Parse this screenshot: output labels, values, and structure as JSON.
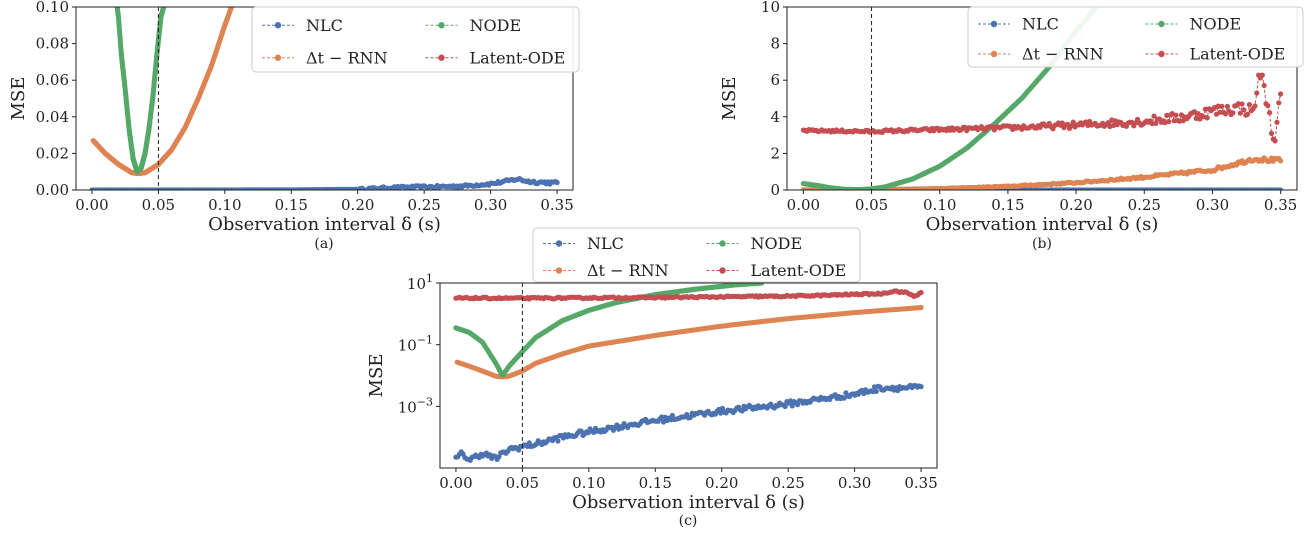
{
  "colors": {
    "NLC": "#4c72b0",
    "dt_RNN": "#dd8452",
    "NODE": "#55a868",
    "Latent_ODE": "#c44e52",
    "vline": "#222222",
    "axis": "#222222"
  },
  "chart_data": [
    {
      "id": "a",
      "type": "line",
      "caption": "(a)",
      "xlabel": "Observation interval δ (s)",
      "ylabel": "MSE",
      "xlim": [
        -0.012,
        0.362
      ],
      "ylim": [
        0,
        0.1
      ],
      "yscale": "linear",
      "xticks": [
        0.0,
        0.05,
        0.1,
        0.15,
        0.2,
        0.25,
        0.3,
        0.35
      ],
      "xtick_labels": [
        "0.00",
        "0.05",
        "0.10",
        "0.15",
        "0.20",
        "0.25",
        "0.30",
        "0.35"
      ],
      "yticks": [
        0,
        0.02,
        0.04,
        0.06,
        0.08,
        0.1
      ],
      "ytick_labels": [
        "0.00",
        "0.02",
        "0.04",
        "0.06",
        "0.08",
        "0.10"
      ],
      "vline": 0.05,
      "grid": false,
      "legend": {
        "placement": "top-right",
        "columns": 2,
        "order": [
          "NLC",
          "NODE",
          "Δt − RNN",
          "Latent-ODE"
        ]
      },
      "series": [
        {
          "name": "NLC",
          "color_key": "NLC",
          "x": [
            0.0,
            0.05,
            0.1,
            0.15,
            0.2,
            0.22,
            0.24,
            0.26,
            0.28,
            0.3,
            0.31,
            0.32,
            0.33,
            0.34,
            0.35
          ],
          "y": [
            0.0,
            0.0,
            0.0,
            0.0001,
            0.0004,
            0.0012,
            0.0016,
            0.0018,
            0.0022,
            0.0034,
            0.0045,
            0.006,
            0.0045,
            0.0042,
            0.0038
          ]
        },
        {
          "name": "Δt − RNN",
          "color_key": "dt_RNN",
          "x": [
            0.001,
            0.01,
            0.02,
            0.03,
            0.035,
            0.04,
            0.05,
            0.06,
            0.07,
            0.08,
            0.09,
            0.1,
            0.105
          ],
          "y": [
            0.027,
            0.02,
            0.014,
            0.0095,
            0.009,
            0.0095,
            0.014,
            0.022,
            0.034,
            0.05,
            0.068,
            0.09,
            0.1
          ]
        },
        {
          "name": "NODE",
          "color_key": "NODE",
          "x": [
            0.019,
            0.02,
            0.022,
            0.025,
            0.028,
            0.031,
            0.034,
            0.037,
            0.04,
            0.043,
            0.046,
            0.049,
            0.052,
            0.054
          ],
          "y": [
            0.1,
            0.094,
            0.075,
            0.055,
            0.033,
            0.017,
            0.01,
            0.012,
            0.02,
            0.034,
            0.052,
            0.075,
            0.095,
            0.1
          ]
        }
      ]
    },
    {
      "id": "b",
      "type": "line",
      "caption": "(b)",
      "xlabel": "Observation interval δ (s)",
      "ylabel": "MSE",
      "xlim": [
        -0.012,
        0.362
      ],
      "ylim": [
        0,
        10
      ],
      "yscale": "linear",
      "xticks": [
        0.0,
        0.05,
        0.1,
        0.15,
        0.2,
        0.25,
        0.3,
        0.35
      ],
      "xtick_labels": [
        "0.00",
        "0.05",
        "0.10",
        "0.15",
        "0.20",
        "0.25",
        "0.30",
        "0.35"
      ],
      "yticks": [
        0,
        2,
        4,
        6,
        8,
        10
      ],
      "ytick_labels": [
        "0",
        "2",
        "4",
        "6",
        "8",
        "10"
      ],
      "vline": 0.05,
      "grid": false,
      "legend": {
        "placement": "top-right",
        "columns": 2,
        "order": [
          "NLC",
          "NODE",
          "Δt − RNN",
          "Latent-ODE"
        ]
      },
      "series": [
        {
          "name": "NLC",
          "color_key": "NLC",
          "x": [
            0.0,
            0.1,
            0.2,
            0.3,
            0.35
          ],
          "y": [
            0.0,
            0.0,
            0.0,
            0.0,
            0.0
          ]
        },
        {
          "name": "Δt − RNN",
          "color_key": "dt_RNN",
          "x": [
            0.0,
            0.05,
            0.1,
            0.15,
            0.2,
            0.25,
            0.3,
            0.33,
            0.35
          ],
          "y": [
            0.01,
            0.02,
            0.08,
            0.2,
            0.4,
            0.7,
            1.1,
            1.7,
            1.6
          ]
        },
        {
          "name": "NODE",
          "color_key": "NODE",
          "x": [
            0.0,
            0.01,
            0.02,
            0.03,
            0.04,
            0.05,
            0.06,
            0.08,
            0.1,
            0.12,
            0.14,
            0.16,
            0.18,
            0.2,
            0.215
          ],
          "y": [
            0.35,
            0.25,
            0.12,
            0.04,
            0.02,
            0.06,
            0.17,
            0.6,
            1.3,
            2.3,
            3.6,
            5.0,
            6.7,
            8.7,
            10
          ]
        },
        {
          "name": "Latent-ODE",
          "color_key": "Latent_ODE",
          "x": [
            0.0,
            0.05,
            0.1,
            0.15,
            0.2,
            0.25,
            0.28,
            0.3,
            0.32,
            0.33,
            0.335,
            0.34,
            0.345,
            0.35
          ],
          "y": [
            3.25,
            3.2,
            3.3,
            3.4,
            3.55,
            3.75,
            4.0,
            4.3,
            4.5,
            4.3,
            6.5,
            4.8,
            2.6,
            5.1
          ]
        }
      ]
    },
    {
      "id": "c",
      "type": "line",
      "caption": "(c)",
      "xlabel": "Observation interval δ (s)",
      "ylabel": "MSE",
      "xlim": [
        -0.012,
        0.362
      ],
      "ylim": [
        1e-05,
        10
      ],
      "yscale": "log",
      "xticks": [
        0.0,
        0.05,
        0.1,
        0.15,
        0.2,
        0.25,
        0.3,
        0.35
      ],
      "xtick_labels": [
        "0.00",
        "0.05",
        "0.10",
        "0.15",
        "0.20",
        "0.25",
        "0.30",
        "0.35"
      ],
      "yticks": [
        10,
        0.1,
        0.001
      ],
      "ytick_labels": [
        {
          "base": "10",
          "exp": "1"
        },
        {
          "base": "10",
          "exp": "−1"
        },
        {
          "base": "10",
          "exp": "−3"
        }
      ],
      "vline": 0.05,
      "grid": false,
      "legend": {
        "placement": "top-center",
        "columns": 2,
        "order": [
          "NLC",
          "NODE",
          "Δt − RNN",
          "Latent-ODE"
        ]
      },
      "series": [
        {
          "name": "NLC",
          "color_key": "NLC",
          "x": [
            0.0,
            0.005,
            0.01,
            0.02,
            0.03,
            0.04,
            0.05,
            0.06,
            0.08,
            0.1,
            0.15,
            0.2,
            0.25,
            0.3,
            0.32,
            0.35
          ],
          "y": [
            2e-05,
            3e-05,
            1.8e-05,
            3e-05,
            2e-05,
            4e-05,
            5e-05,
            6e-05,
            0.0001,
            0.00015,
            0.00035,
            0.0007,
            0.0012,
            0.0025,
            0.004,
            0.004
          ]
        },
        {
          "name": "Δt − RNN",
          "color_key": "dt_RNN",
          "x": [
            0.001,
            0.01,
            0.02,
            0.03,
            0.035,
            0.04,
            0.05,
            0.06,
            0.08,
            0.1,
            0.15,
            0.2,
            0.25,
            0.3,
            0.35
          ],
          "y": [
            0.027,
            0.02,
            0.014,
            0.0095,
            0.009,
            0.0095,
            0.014,
            0.025,
            0.05,
            0.09,
            0.2,
            0.4,
            0.7,
            1.1,
            1.6
          ]
        },
        {
          "name": "NODE",
          "color_key": "NODE",
          "x": [
            0.0,
            0.01,
            0.02,
            0.03,
            0.035,
            0.04,
            0.05,
            0.06,
            0.08,
            0.1,
            0.12,
            0.15,
            0.18,
            0.21,
            0.23
          ],
          "y": [
            0.35,
            0.25,
            0.12,
            0.025,
            0.01,
            0.02,
            0.06,
            0.17,
            0.6,
            1.3,
            2.3,
            4.2,
            6.3,
            8.7,
            10
          ]
        },
        {
          "name": "Latent-ODE",
          "color_key": "Latent_ODE",
          "x": [
            0.0,
            0.05,
            0.1,
            0.15,
            0.2,
            0.25,
            0.28,
            0.3,
            0.32,
            0.33,
            0.34,
            0.345,
            0.35
          ],
          "y": [
            3.25,
            3.2,
            3.3,
            3.4,
            3.55,
            3.75,
            4.0,
            4.3,
            4.5,
            5.5,
            4.8,
            3.6,
            5.1
          ]
        }
      ]
    }
  ]
}
